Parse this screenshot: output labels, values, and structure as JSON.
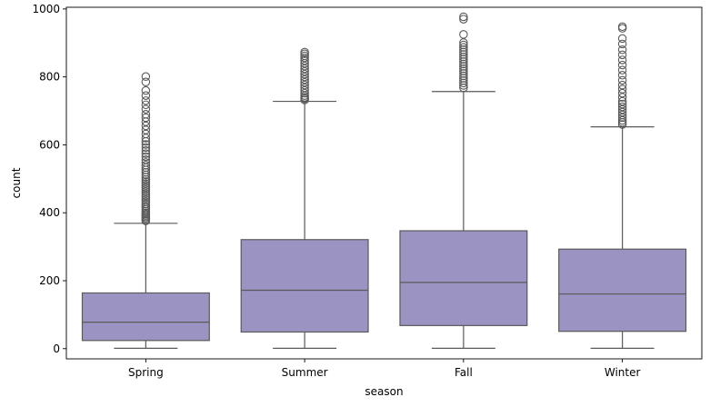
{
  "chart_data": {
    "type": "box",
    "xlabel": "season",
    "ylabel": "count",
    "ylim": [
      -30,
      1005
    ],
    "yticks": [
      0,
      200,
      400,
      600,
      800,
      1000
    ],
    "ytick_labels": [
      "0",
      "200",
      "400",
      "600",
      "800",
      "1000"
    ],
    "categories": [
      "Spring",
      "Summer",
      "Fall",
      "Winter"
    ],
    "grid": false,
    "legend": "none",
    "colors": {
      "box_fill": "#9b93c2",
      "line": "#5a5a5a",
      "axis": "#000000"
    },
    "boxes": [
      {
        "category": "Spring",
        "whisker_low": 1,
        "q1": 24,
        "median": 78,
        "q3": 164,
        "whisker_high": 369,
        "outliers": [
          376,
          380,
          384,
          388,
          392,
          396,
          400,
          405,
          410,
          415,
          420,
          426,
          432,
          438,
          444,
          450,
          456,
          462,
          468,
          474,
          480,
          486,
          492,
          498,
          505,
          512,
          519,
          526,
          533,
          540,
          548,
          556,
          565,
          574,
          583,
          592,
          601,
          610,
          620,
          632,
          644,
          656,
          668,
          680,
          690,
          705,
          718,
          730,
          745,
          760,
          785,
          801
        ]
      },
      {
        "category": "Summer",
        "whisker_low": 1,
        "q1": 49,
        "median": 172,
        "q3": 321,
        "whisker_high": 728,
        "outliers": [
          732,
          736,
          740,
          745,
          752,
          760,
          768,
          776,
          784,
          792,
          800,
          808,
          816,
          824,
          832,
          840,
          848,
          856,
          862,
          868,
          873
        ]
      },
      {
        "category": "Fall",
        "whisker_low": 1,
        "q1": 68,
        "median": 195,
        "q3": 347,
        "whisker_high": 757,
        "outliers": [
          768,
          775,
          782,
          789,
          796,
          803,
          810,
          817,
          824,
          831,
          838,
          845,
          852,
          859,
          866,
          873,
          880,
          887,
          894,
          901,
          925,
          970,
          977
        ]
      },
      {
        "category": "Winter",
        "whisker_low": 1,
        "q1": 51,
        "median": 161,
        "q3": 293,
        "whisker_high": 653,
        "outliers": [
          660,
          666,
          672,
          680,
          688,
          696,
          704,
          712,
          720,
          728,
          740,
          752,
          764,
          776,
          790,
          805,
          820,
          835,
          850,
          865,
          880,
          897,
          913,
          943,
          948
        ]
      }
    ]
  }
}
